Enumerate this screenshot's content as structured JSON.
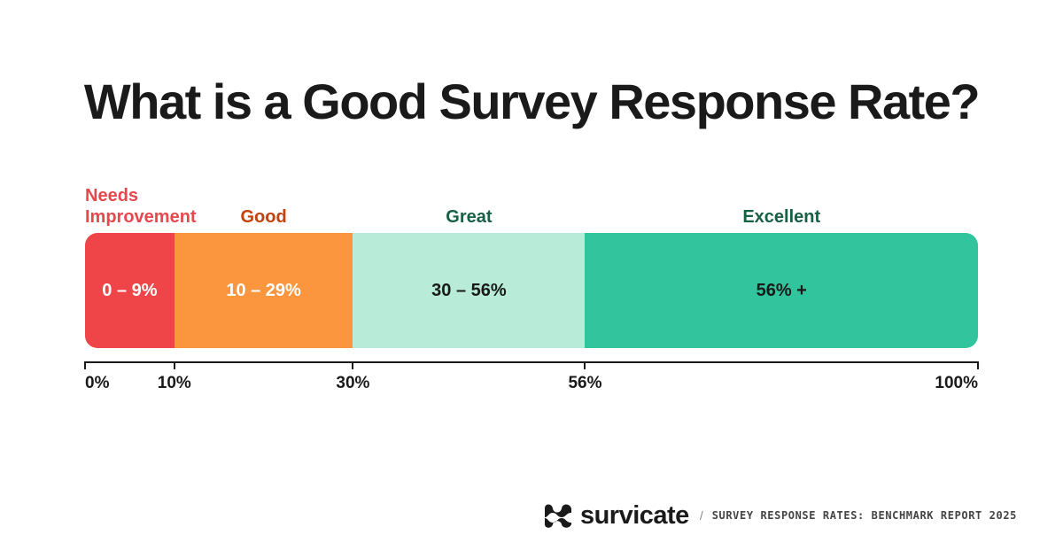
{
  "chart_data": {
    "type": "bar",
    "title": "What is a Good Survey Response Rate?",
    "orientation": "horizontal-stacked-range",
    "xlim": [
      0,
      100
    ],
    "unit": "%",
    "segments": [
      {
        "name": "Needs Improvement",
        "name_lines": [
          "Needs",
          "Improvement"
        ],
        "start": 0,
        "end": 10,
        "value_label": "0 – 9%",
        "color": "#ef4548",
        "label_color": "#e5484d",
        "value_color": "#ffffff"
      },
      {
        "name": "Good",
        "start": 10,
        "end": 30,
        "value_label": "10 – 29%",
        "color": "#fb963f",
        "label_color": "#c2410c",
        "value_color": "#ffffff"
      },
      {
        "name": "Great",
        "start": 30,
        "end": 56,
        "value_label": "30 – 56%",
        "color": "#b8ecd9",
        "label_color": "#166044",
        "value_color": "#1a1a1a"
      },
      {
        "name": "Excellent",
        "start": 56,
        "end": 100,
        "value_label": "56% +",
        "color": "#32c49c",
        "label_color": "#166044",
        "value_color": "#1a1a1a"
      }
    ],
    "ticks": [
      {
        "value": 0,
        "label": "0%"
      },
      {
        "value": 10,
        "label": "10%"
      },
      {
        "value": 30,
        "label": "30%"
      },
      {
        "value": 56,
        "label": "56%"
      },
      {
        "value": 100,
        "label": "100%"
      }
    ]
  },
  "footer": {
    "brand": "survicate",
    "separator": "/",
    "report": "SURVEY RESPONSE RATES: BENCHMARK REPORT 2025",
    "logo_icon": "survicate-logo-icon"
  }
}
